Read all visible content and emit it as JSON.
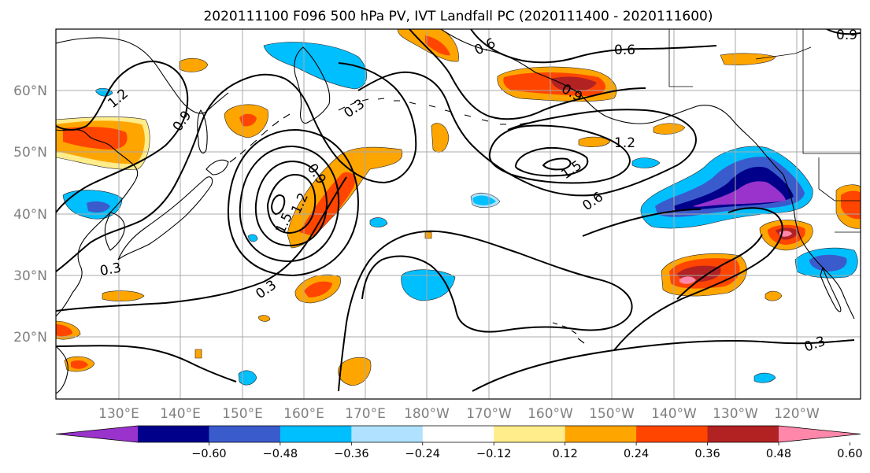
{
  "title": "2020111100 F096 500 hPa PV, IVT Landfall PC (2020111400 - 2020111600)",
  "map": {
    "lat_labels": [
      "60°N",
      "50°N",
      "40°N",
      "30°N",
      "20°N"
    ],
    "lon_labels": [
      "130°E",
      "140°E",
      "150°E",
      "160°E",
      "170°E",
      "180°W",
      "170°W",
      "160°W",
      "150°W",
      "140°W",
      "130°W",
      "120°W"
    ],
    "contour_labels": [
      "1.2",
      "0.9",
      "0.3",
      "0.9",
      "0.6",
      "0.6",
      "0.9",
      "1.2",
      "1.5",
      "0.6",
      "1.2",
      "1.5",
      "0.3",
      "0.3",
      "0.9",
      "0.3"
    ]
  },
  "colorbar": {
    "tick_labels": [
      "−0.60",
      "−0.48",
      "−0.36",
      "−0.24",
      "−0.12",
      "0.12",
      "0.24",
      "0.36",
      "0.48",
      "0.60"
    ],
    "colors": [
      "#9933cc",
      "#00008b",
      "#3a5bcc",
      "#00bfff",
      "#b0e2ff",
      "#ffffff",
      "#ffec8b",
      "#ffa500",
      "#ff4500",
      "#b22222",
      "#ff88aa"
    ]
  }
}
